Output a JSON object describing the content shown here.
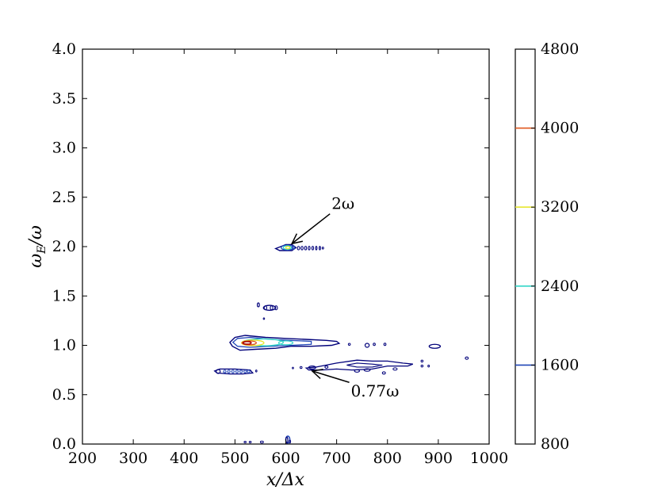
{
  "chart_data": {
    "type": "contour",
    "xlabel": "x/Δx",
    "ylabel": "ω_E/ω",
    "xlim": [
      200,
      1000
    ],
    "ylim": [
      0.0,
      4.0
    ],
    "x_ticks": [
      "200",
      "300",
      "400",
      "500",
      "600",
      "700",
      "800",
      "900",
      "1000"
    ],
    "y_ticks": [
      "0.0",
      "0.5",
      "1.0",
      "1.5",
      "2.0",
      "2.5",
      "3.0",
      "3.5",
      "4.0"
    ],
    "colorbar": {
      "range": [
        800,
        4800
      ],
      "ticks": [
        "800",
        "1600",
        "2400",
        "3200",
        "4000",
        "4800"
      ],
      "level_colors": [
        {
          "level": 1600,
          "color": "#2147b8"
        },
        {
          "level": 2400,
          "color": "#33d6c8"
        },
        {
          "level": 3200,
          "color": "#e6e632"
        },
        {
          "level": 4000,
          "color": "#e0561c"
        }
      ]
    },
    "features": [
      {
        "x_range": [
          490,
          700
        ],
        "y": 1.02,
        "peak_level": 4800
      },
      {
        "x_range": [
          585,
          640
        ],
        "y": 1.98,
        "peak_level": 3200
      },
      {
        "x_range": [
          460,
          535
        ],
        "y": 0.73,
        "peak_level": 1600
      },
      {
        "x_range": [
          640,
          900
        ],
        "y": 0.78,
        "peak_level": 1600
      },
      {
        "x_range": [
          545,
          590
        ],
        "y": 1.38,
        "peak_level": 1600
      },
      {
        "x_range": [
          595,
          612
        ],
        "y": 0.05,
        "peak_level": 1600
      }
    ],
    "annotations": [
      {
        "text": "2ω",
        "point": [
          612,
          2.03
        ],
        "text_pos": [
          690,
          2.38
        ]
      },
      {
        "text": "0.77ω",
        "point": [
          652,
          0.74
        ],
        "text_pos": [
          728,
          0.48
        ]
      }
    ]
  }
}
